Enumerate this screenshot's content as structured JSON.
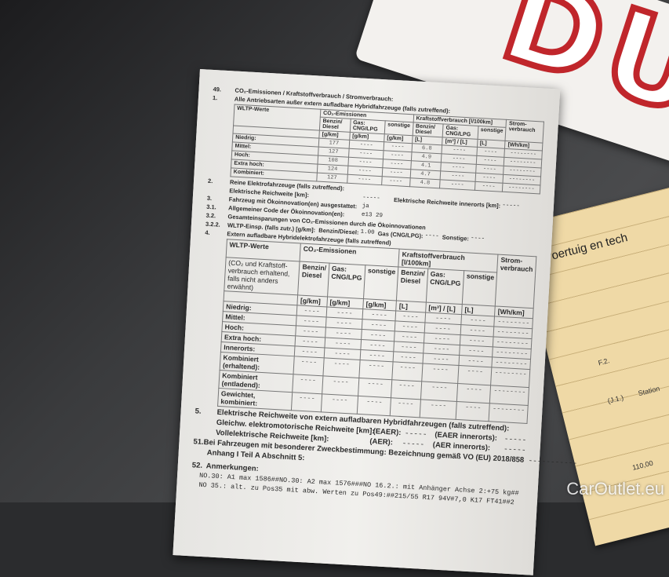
{
  "plate": {
    "text": "DU"
  },
  "yellow_doc": {
    "title": "voertuig en tech",
    "fields": [
      "F.2.",
      "(J.1.)",
      "Station",
      "110,00"
    ]
  },
  "s49": {
    "num": "49.",
    "title": "CO₂-Emissionen / Kraftstoffverbrauch / Stromverbrauch:"
  },
  "s1": {
    "num": "1.",
    "title": "Alle Antriebsarten außer extern aufladbare Hybridfahrzeuge (falls zutreffend):",
    "h_wltp": "WLTP-Werte",
    "h_co2": "CO₂-Emissionen",
    "h_fuel": "Kraftstoffverbrauch [l/100km]",
    "h_strom": "Strom-verbrauch",
    "cols": [
      "Benzin/ Diesel",
      "Gas: CNG/LPG",
      "sonstige",
      "Benzin/ Diesel",
      "Gas: CNG/LPG",
      "sonstige"
    ],
    "units": [
      "[g/km]",
      "[g/km]",
      "[g/km]",
      "[L]",
      "[m³] / [L]",
      "[L]",
      "[Wh/km]"
    ],
    "rows": [
      {
        "label": "Niedrig:",
        "v": [
          "177",
          "----",
          "----",
          "6.8",
          "----",
          "----",
          "--------"
        ]
      },
      {
        "label": "Mittel:",
        "v": [
          "127",
          "----",
          "----",
          "4.9",
          "----",
          "----",
          "--------"
        ]
      },
      {
        "label": "Hoch:",
        "v": [
          "108",
          "----",
          "----",
          "4.1",
          "----",
          "----",
          "--------"
        ]
      },
      {
        "label": "Extra hoch:",
        "v": [
          "124",
          "----",
          "----",
          "4.7",
          "----",
          "----",
          "--------"
        ]
      },
      {
        "label": "Kombiniert:",
        "v": [
          "127",
          "----",
          "----",
          "4.8",
          "----",
          "----",
          "--------"
        ]
      }
    ]
  },
  "s2": {
    "num": "2.",
    "title": "Reine Elektrofahrzeuge (falls zutreffend):",
    "range_label": "Elektrische Reichweite [km]:",
    "range_value": "-----",
    "city_label": "Elektrische Reichweite innerorts [km]:",
    "city_value": "-----"
  },
  "s3": {
    "num": "3.",
    "label": "Fahrzeug mit Ökoinnovation(en) ausgestattet:",
    "value": "ja"
  },
  "s31": {
    "num": "3.1.",
    "label": "Allgemeiner Code der Ökoinnovation(en):",
    "value": "e13 29"
  },
  "s32": {
    "num": "3.2.",
    "label": "Gesamteinsparungen von CO₂-Emissionen durch die Ökoinnovationen"
  },
  "s322": {
    "num": "3.2.2.",
    "label": "WLTP-Einsp. (falls zutr.) [g/km]:",
    "bd_label": "Benzin/Diesel:",
    "bd_value": "1.00",
    "gas_label": "Gas (CNG/LPG):",
    "gas_value": "----",
    "other_label": "Sonstige:",
    "other_value": "----"
  },
  "s4": {
    "num": "4.",
    "title": "Extern aufladbare Hybridelektrofahrzeuge (falls zutreffend)",
    "h_wltp": "WLTP-Werte",
    "h_note": "(CO₂ und Kraftstoff-verbrauch erhaltend, falls nicht anders erwähnt)",
    "h_co2": "CO₂-Emissionen",
    "h_fuel": "Kraftstoffverbrauch [l/100km]",
    "h_strom": "Strom-verbrauch",
    "cols": [
      "Benzin/ Diesel",
      "Gas: CNG/LPG",
      "sonstige",
      "Benzin/ Diesel",
      "Gas: CNG/LPG",
      "sonstige"
    ],
    "units": [
      "[g/km]",
      "[g/km]",
      "[g/km]",
      "[L]",
      "[m³] / [L]",
      "[L]",
      "[Wh/km]"
    ],
    "rows": [
      "Niedrig:",
      "Mittel:",
      "Hoch:",
      "Extra hoch:",
      "Innerorts:",
      "Kombiniert (erhaltend):",
      "Kombiniert (entladend):",
      "Gewichtet, kombiniert:"
    ],
    "empty": "----",
    "empty_long": "--------"
  },
  "s5": {
    "num": "5.",
    "title": "Elektrische Reichweite von extern aufladbaren Hybridfahrzeugen (falls zutreffend):",
    "eaer_label": "Gleichw. elektromotorische Reichweite [km]:",
    "eaer": "(EAER):",
    "eaer_value": "-----",
    "eaer_city": "(EAER innerorts):",
    "eaer_city_value": "-----",
    "aer_label": "Vollelektrische Reichweite [km]:",
    "aer": "(AER):",
    "aer_value": "-----",
    "aer_city": "(AER innerorts):",
    "aer_city_value": "-----"
  },
  "s51": {
    "num": "51.",
    "text": "Bei Fahrzeugen mit besonderer Zweckbestimmung: Bezeichnung gemäß VO (EU) 2018/858",
    "text2": "Anhang I Teil A Abschnitt 5:",
    "value": "-----------"
  },
  "s52": {
    "num": "52.",
    "title": "Anmerkungen:",
    "lines": [
      "NO.30: A1 max 1586##NO.30: A2 max 1576###NO 16.2.: mit Anhänger Achse 2:+75 kg##",
      "NO 35.: alt. zu Pos35 mit abw. Werten zu Pos49:##215/55 R17 94V#7,0 K17 FT41##2"
    ]
  },
  "watermark": "CarOutlet.eu"
}
